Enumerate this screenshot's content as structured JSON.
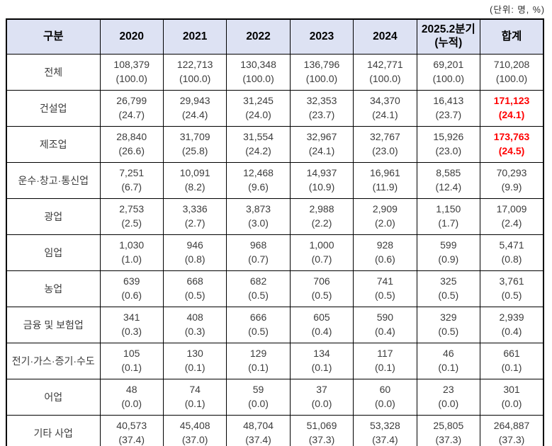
{
  "unit_label": "(단위: 명, %)",
  "colors": {
    "header_bg": "#dde2f3",
    "border": "#000000",
    "highlight_text": "#ff0000",
    "body_text": "#3c3c3c"
  },
  "table": {
    "header": [
      "구분",
      "2020",
      "2021",
      "2022",
      "2023",
      "2024",
      "2025.2분기\n(누적)",
      "합계"
    ]
  },
  "chart_data": {
    "type": "table",
    "title": "산업별 연도별 현황표",
    "unit": "명, %",
    "columns": [
      "구분",
      "2020",
      "2021",
      "2022",
      "2023",
      "2024",
      "2025.2분기(누적)",
      "합계"
    ],
    "rows": [
      {
        "label": "전체",
        "values": [
          108379,
          122713,
          130348,
          136796,
          142771,
          69201,
          710208
        ],
        "percents": [
          100.0,
          100.0,
          100.0,
          100.0,
          100.0,
          100.0,
          100.0
        ],
        "highlight_total": false
      },
      {
        "label": "건설업",
        "values": [
          26799,
          29943,
          31245,
          32353,
          34370,
          16413,
          171123
        ],
        "percents": [
          24.7,
          24.4,
          24.0,
          23.7,
          24.1,
          23.7,
          24.1
        ],
        "highlight_total": true
      },
      {
        "label": "제조업",
        "values": [
          28840,
          31709,
          31554,
          32967,
          32767,
          15926,
          173763
        ],
        "percents": [
          26.6,
          25.8,
          24.2,
          24.1,
          23.0,
          23.0,
          24.5
        ],
        "highlight_total": true
      },
      {
        "label": "운수·창고·통신업",
        "values": [
          7251,
          10091,
          12468,
          14937,
          16961,
          8585,
          70293
        ],
        "percents": [
          6.7,
          8.2,
          9.6,
          10.9,
          11.9,
          12.4,
          9.9
        ],
        "highlight_total": false
      },
      {
        "label": "광업",
        "values": [
          2753,
          3336,
          3873,
          2988,
          2909,
          1150,
          17009
        ],
        "percents": [
          2.5,
          2.7,
          3.0,
          2.2,
          2.0,
          1.7,
          2.4
        ],
        "highlight_total": false
      },
      {
        "label": "임업",
        "values": [
          1030,
          946,
          968,
          1000,
          928,
          599,
          5471
        ],
        "percents": [
          1.0,
          0.8,
          0.7,
          0.7,
          0.6,
          0.9,
          0.8
        ],
        "highlight_total": false
      },
      {
        "label": "농업",
        "values": [
          639,
          668,
          682,
          706,
          741,
          325,
          3761
        ],
        "percents": [
          0.6,
          0.5,
          0.5,
          0.5,
          0.5,
          0.5,
          0.5
        ],
        "highlight_total": false
      },
      {
        "label": "금융 및 보험업",
        "values": [
          341,
          408,
          666,
          605,
          590,
          329,
          2939
        ],
        "percents": [
          0.3,
          0.3,
          0.5,
          0.4,
          0.4,
          0.5,
          0.4
        ],
        "highlight_total": false
      },
      {
        "label": "전기·가스·증기·수도",
        "values": [
          105,
          130,
          129,
          134,
          117,
          46,
          661
        ],
        "percents": [
          0.1,
          0.1,
          0.1,
          0.1,
          0.1,
          0.1,
          0.1
        ],
        "highlight_total": false
      },
      {
        "label": "어업",
        "values": [
          48,
          74,
          59,
          37,
          60,
          23,
          301
        ],
        "percents": [
          0.0,
          0.1,
          0.0,
          0.0,
          0.0,
          0.0,
          0.0
        ],
        "highlight_total": false
      },
      {
        "label": "기타 사업",
        "values": [
          40573,
          45408,
          48704,
          51069,
          53328,
          25805,
          264887
        ],
        "percents": [
          37.4,
          37.0,
          37.4,
          37.3,
          37.4,
          37.3,
          37.3
        ],
        "highlight_total": false
      }
    ]
  }
}
